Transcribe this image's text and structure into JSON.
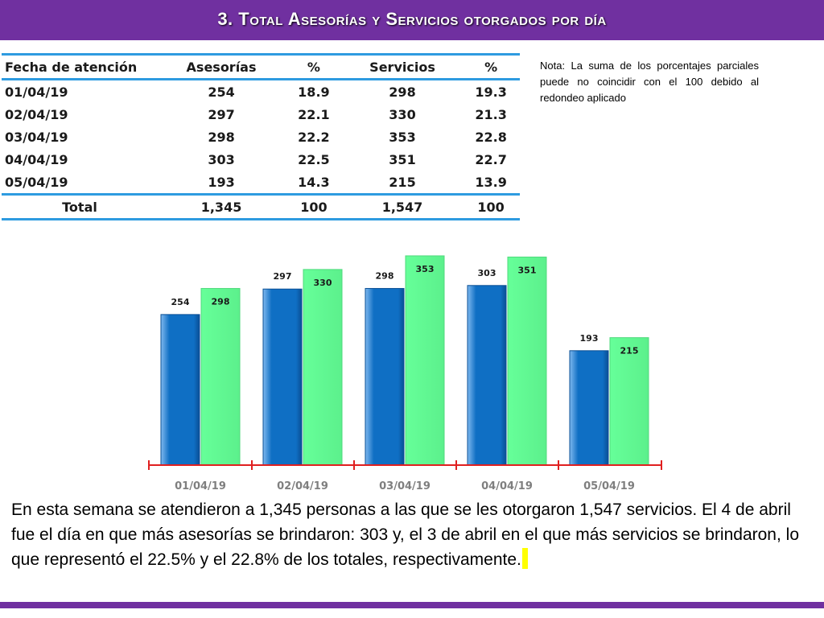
{
  "header": {
    "title": "3.  Total Asesorías y Servicios otorgados por día"
  },
  "table": {
    "columns": [
      "Fecha de atención",
      "Asesorías",
      "%",
      "Servicios",
      "%"
    ],
    "rows": [
      [
        "01/04/19",
        "254",
        "18.9",
        "298",
        "19.3"
      ],
      [
        "02/04/19",
        "297",
        "22.1",
        "330",
        "21.3"
      ],
      [
        "03/04/19",
        "298",
        "22.2",
        "353",
        "22.8"
      ],
      [
        "04/04/19",
        "303",
        "22.5",
        "351",
        "22.7"
      ],
      [
        "05/04/19",
        "193",
        "14.3",
        "215",
        "13.9"
      ]
    ],
    "total": [
      "Total",
      "1,345",
      "100",
      "1,547",
      "100"
    ]
  },
  "note": "Nota: La suma de los porcentajes parciales puede no coincidir con el 100 debido al redondeo aplicado",
  "chart_data": {
    "type": "bar",
    "categories": [
      "01/04/19",
      "02/04/19",
      "03/04/19",
      "04/04/19",
      "05/04/19"
    ],
    "series": [
      {
        "values": [
          254,
          297,
          298,
          303,
          193
        ],
        "color": "#0f6fc4"
      },
      {
        "values": [
          298,
          330,
          353,
          351,
          215
        ],
        "color": "#66ff99"
      }
    ],
    "data_labels": true,
    "grid": false,
    "legend": "none",
    "axis_color": "#e02020"
  },
  "summary": "En esta semana se atendieron a 1,345 personas a las que se les otorgaron 1,547 servicios. El 4 de abril fue el día en que más asesorías se brindaron: 303 y, el 3 de abril en el que más servicios se brindaron, lo que representó  el 22.5% y el 22.8% de los totales, respectivamente."
}
